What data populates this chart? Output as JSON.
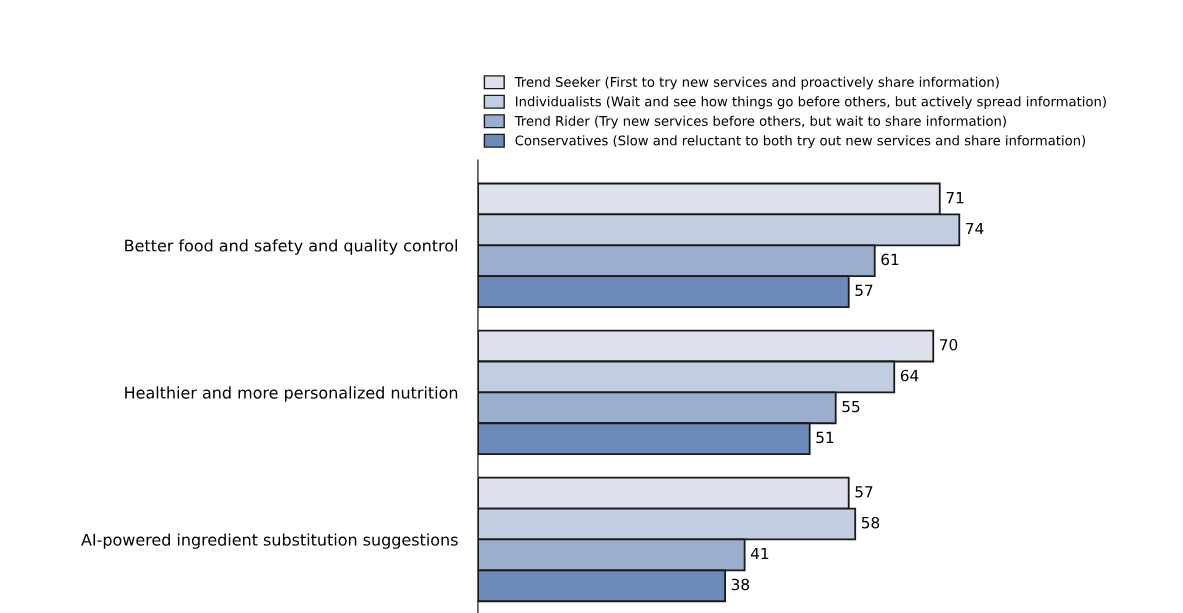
{
  "chart_data": {
    "type": "bar",
    "orientation": "horizontal",
    "categories": [
      "Better food and safety and quality control",
      "Healthier and more personalized nutrition",
      "AI-powered ingredient substitution suggestions"
    ],
    "series": [
      {
        "name": "Trend Seeker (First to try new services and proactively share information)",
        "color": "#dce1ec",
        "values": [
          71,
          70,
          57
        ]
      },
      {
        "name": "Individualists (Wait and see how things go before others, but actively spread information)",
        "color": "#c1cde1",
        "values": [
          74,
          64,
          58
        ]
      },
      {
        "name": "Trend Rider (Try new services before others, but wait to share information)",
        "color": "#9caecd",
        "values": [
          61,
          55,
          41
        ]
      },
      {
        "name": "Conservatives (Slow and reluctant to both try out new services and share information)",
        "color": "#6b8ab9",
        "values": [
          57,
          51,
          38
        ]
      }
    ],
    "data_labels": true,
    "legend": "top",
    "grid": false,
    "tick_labels": "y"
  }
}
